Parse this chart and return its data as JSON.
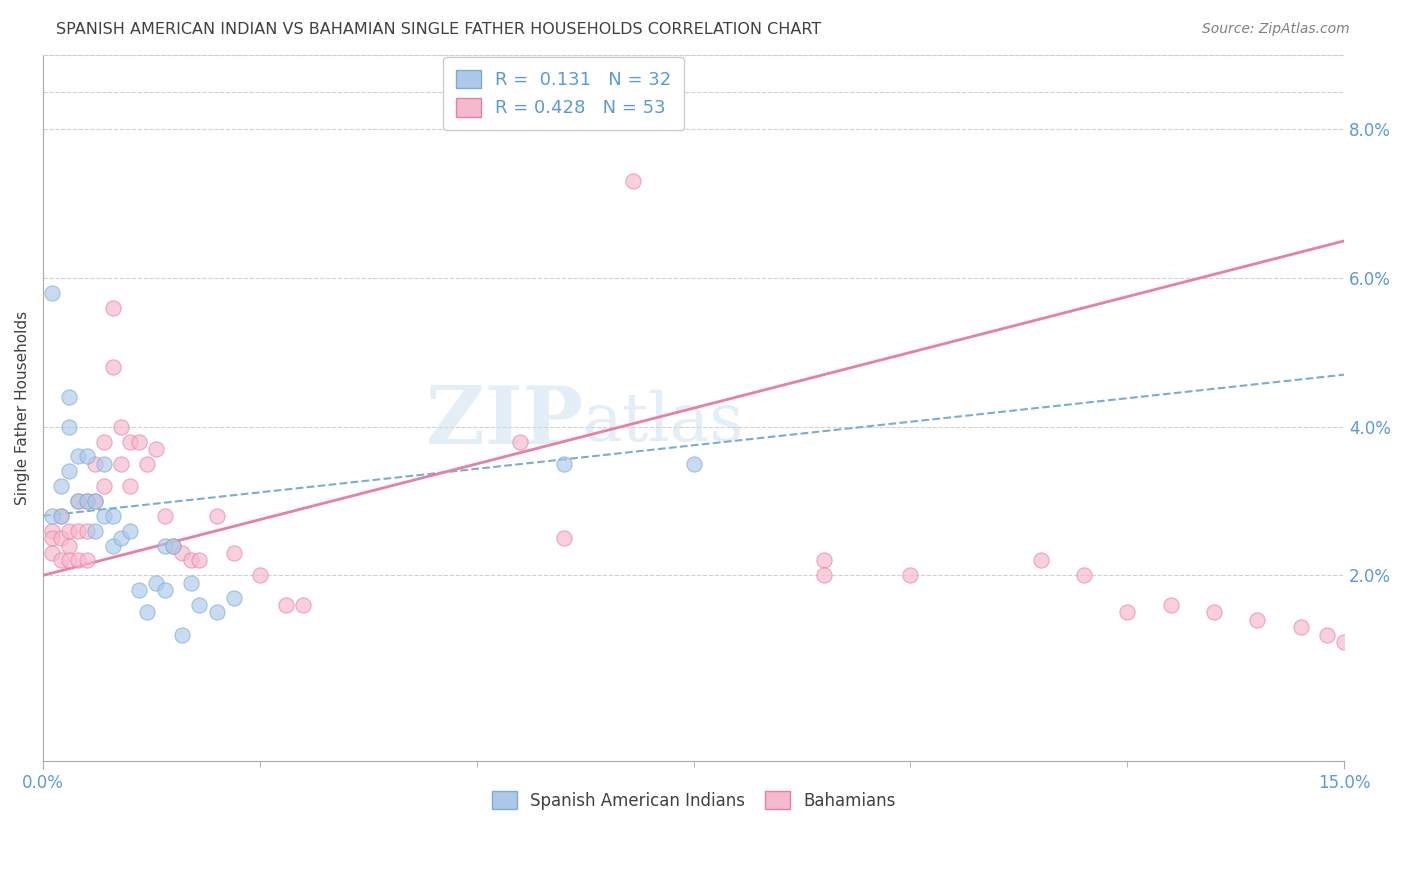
{
  "title": "SPANISH AMERICAN INDIAN VS BAHAMIAN SINGLE FATHER HOUSEHOLDS CORRELATION CHART",
  "source": "Source: ZipAtlas.com",
  "ylabel": "Single Father Households",
  "xlim": [
    0.0,
    0.15
  ],
  "ylim": [
    -0.005,
    0.09
  ],
  "yticks": [
    0.02,
    0.04,
    0.06,
    0.08
  ],
  "xtick_positions": [
    0.0,
    0.15
  ],
  "xtick_labels": [
    "0.0%",
    "15.0%"
  ],
  "watermark_zip": "ZIP",
  "watermark_atlas": "atlas",
  "legend_entries": [
    {
      "label": "Spanish American Indians",
      "R": "0.131",
      "N": "32",
      "color": "#adc8e8",
      "edge_color": "#7aadd4"
    },
    {
      "label": "Bahamians",
      "R": "0.428",
      "N": "53",
      "color": "#f5b8cc",
      "edge_color": "#e87fa5"
    }
  ],
  "blue_line_x0": 0.0,
  "blue_line_y0": 0.028,
  "blue_line_x1": 0.15,
  "blue_line_y1": 0.047,
  "pink_line_x0": 0.0,
  "pink_line_y0": 0.02,
  "pink_line_x1": 0.15,
  "pink_line_y1": 0.065,
  "blue_x": [
    0.001,
    0.001,
    0.002,
    0.002,
    0.003,
    0.003,
    0.003,
    0.004,
    0.004,
    0.005,
    0.005,
    0.006,
    0.006,
    0.007,
    0.007,
    0.008,
    0.008,
    0.009,
    0.01,
    0.011,
    0.012,
    0.013,
    0.014,
    0.014,
    0.015,
    0.016,
    0.017,
    0.018,
    0.02,
    0.022,
    0.06,
    0.075
  ],
  "blue_y": [
    0.058,
    0.028,
    0.032,
    0.028,
    0.044,
    0.04,
    0.034,
    0.036,
    0.03,
    0.036,
    0.03,
    0.03,
    0.026,
    0.035,
    0.028,
    0.028,
    0.024,
    0.025,
    0.026,
    0.018,
    0.015,
    0.019,
    0.024,
    0.018,
    0.024,
    0.012,
    0.019,
    0.016,
    0.015,
    0.017,
    0.035,
    0.035
  ],
  "pink_x": [
    0.001,
    0.001,
    0.001,
    0.002,
    0.002,
    0.002,
    0.003,
    0.003,
    0.003,
    0.004,
    0.004,
    0.004,
    0.005,
    0.005,
    0.005,
    0.006,
    0.006,
    0.007,
    0.007,
    0.008,
    0.008,
    0.009,
    0.009,
    0.01,
    0.01,
    0.011,
    0.012,
    0.013,
    0.014,
    0.015,
    0.016,
    0.017,
    0.018,
    0.02,
    0.022,
    0.025,
    0.028,
    0.03,
    0.055,
    0.06,
    0.068,
    0.09,
    0.09,
    0.1,
    0.115,
    0.12,
    0.125,
    0.13,
    0.135,
    0.14,
    0.145,
    0.148,
    0.15
  ],
  "pink_y": [
    0.026,
    0.025,
    0.023,
    0.028,
    0.025,
    0.022,
    0.026,
    0.024,
    0.022,
    0.03,
    0.026,
    0.022,
    0.03,
    0.026,
    0.022,
    0.035,
    0.03,
    0.038,
    0.032,
    0.056,
    0.048,
    0.04,
    0.035,
    0.038,
    0.032,
    0.038,
    0.035,
    0.037,
    0.028,
    0.024,
    0.023,
    0.022,
    0.022,
    0.028,
    0.023,
    0.02,
    0.016,
    0.016,
    0.038,
    0.025,
    0.073,
    0.022,
    0.02,
    0.02,
    0.022,
    0.02,
    0.015,
    0.016,
    0.015,
    0.014,
    0.013,
    0.012,
    0.011
  ],
  "background_color": "#ffffff",
  "grid_color": "#d0d0d0",
  "tick_color": "#5b9bd5",
  "title_color": "#404040",
  "scatter_alpha": 0.65,
  "scatter_size": 120
}
